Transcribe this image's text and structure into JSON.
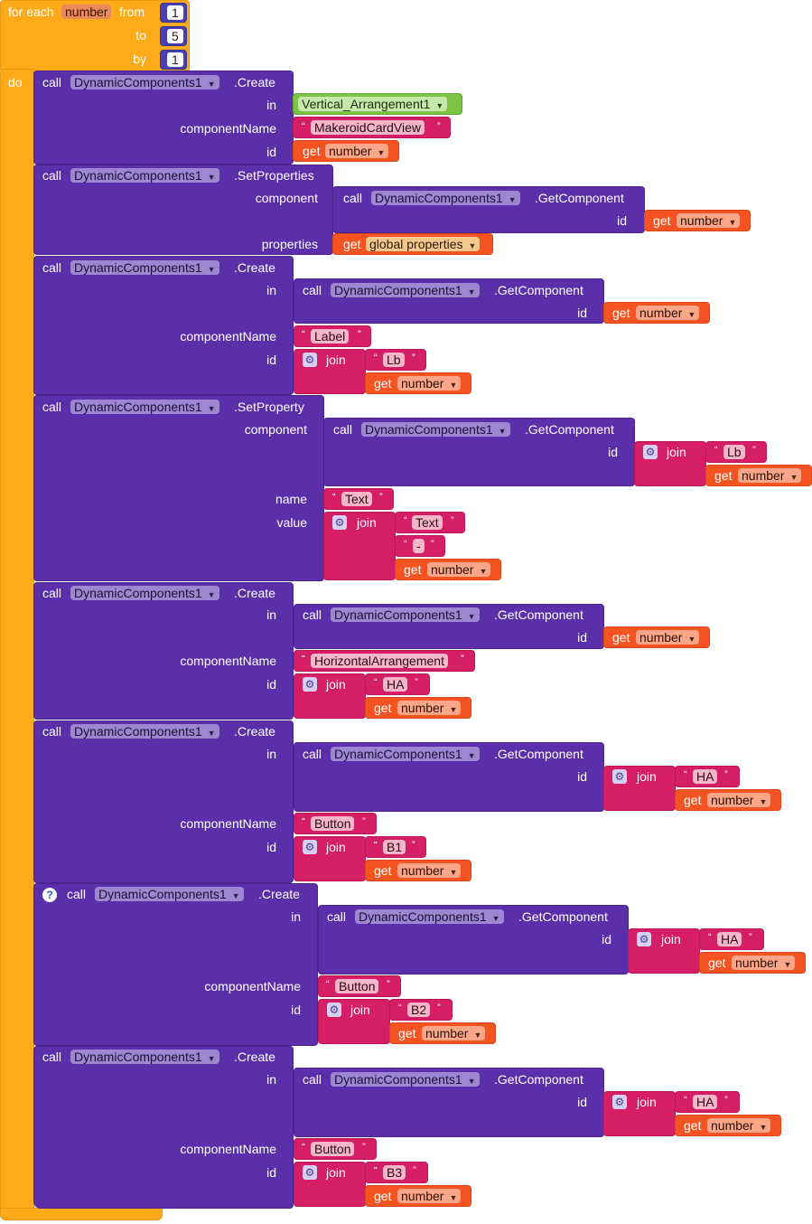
{
  "loop": {
    "for_each": "for each",
    "var": "number",
    "from_label": "from",
    "to_label": "to",
    "by_label": "by",
    "do_label": "do",
    "from": "1",
    "to": "5",
    "by": "1"
  },
  "common": {
    "call": "call",
    "component": "DynamicComponents1",
    "create": ".Create",
    "setprops": ".SetProperties",
    "setprop": ".SetProperty",
    "getcomp": ".GetComponent",
    "in": "in",
    "componentName": "componentName",
    "id": "id",
    "component_lbl": "component",
    "properties": "properties",
    "name": "name",
    "value": "value",
    "get": "get",
    "join": "join",
    "number": "number",
    "global_properties": "global properties",
    "vertical_arrangement": "Vertical_Arrangement1",
    "help": "?"
  },
  "strings": {
    "makeroid": "MakeroidCardView",
    "label": "Label",
    "lb": "Lb",
    "text": "Text",
    "dash": "-",
    "horizontal": "HorizontalArrangement",
    "ha": "HA",
    "button": "Button",
    "b1": "B1",
    "b2": "B2",
    "b3": "B3"
  },
  "colors": {
    "loop": "#FFAB19",
    "procedure": "#5B2FA9",
    "text": "#D51E66",
    "variable": "#F55422",
    "component": "#7CC443"
  }
}
